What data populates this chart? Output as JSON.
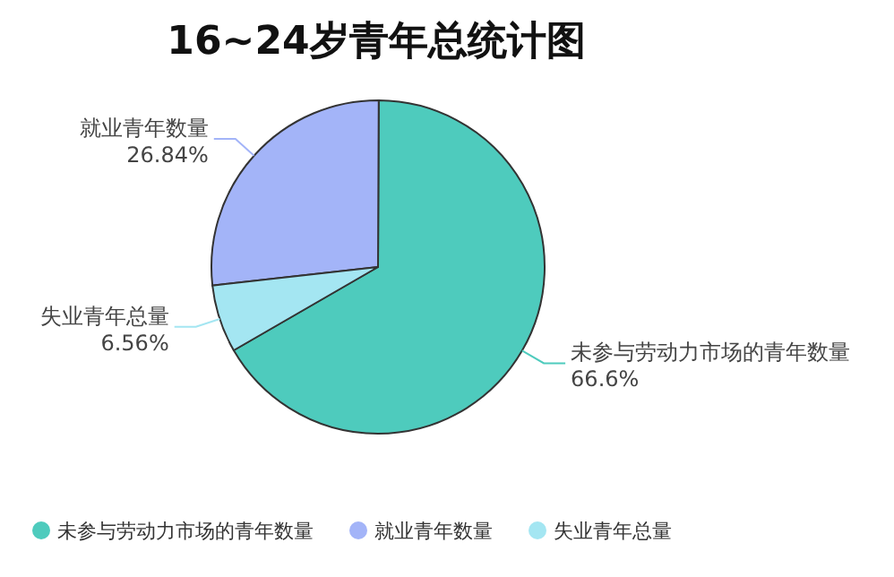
{
  "chart_data": {
    "type": "pie",
    "title": "16~24岁青年总统计图",
    "categories": [
      "未参与劳动力市场的青年数量",
      "就业青年数量",
      "失业青年总量"
    ],
    "values": [
      66.6,
      26.84,
      6.56
    ],
    "value_labels": [
      "66.6%",
      "26.84%",
      "6.56%"
    ],
    "colors": [
      "#4ecbbd",
      "#a3b4f8",
      "#a4e6f2"
    ],
    "legend": "bottom"
  }
}
